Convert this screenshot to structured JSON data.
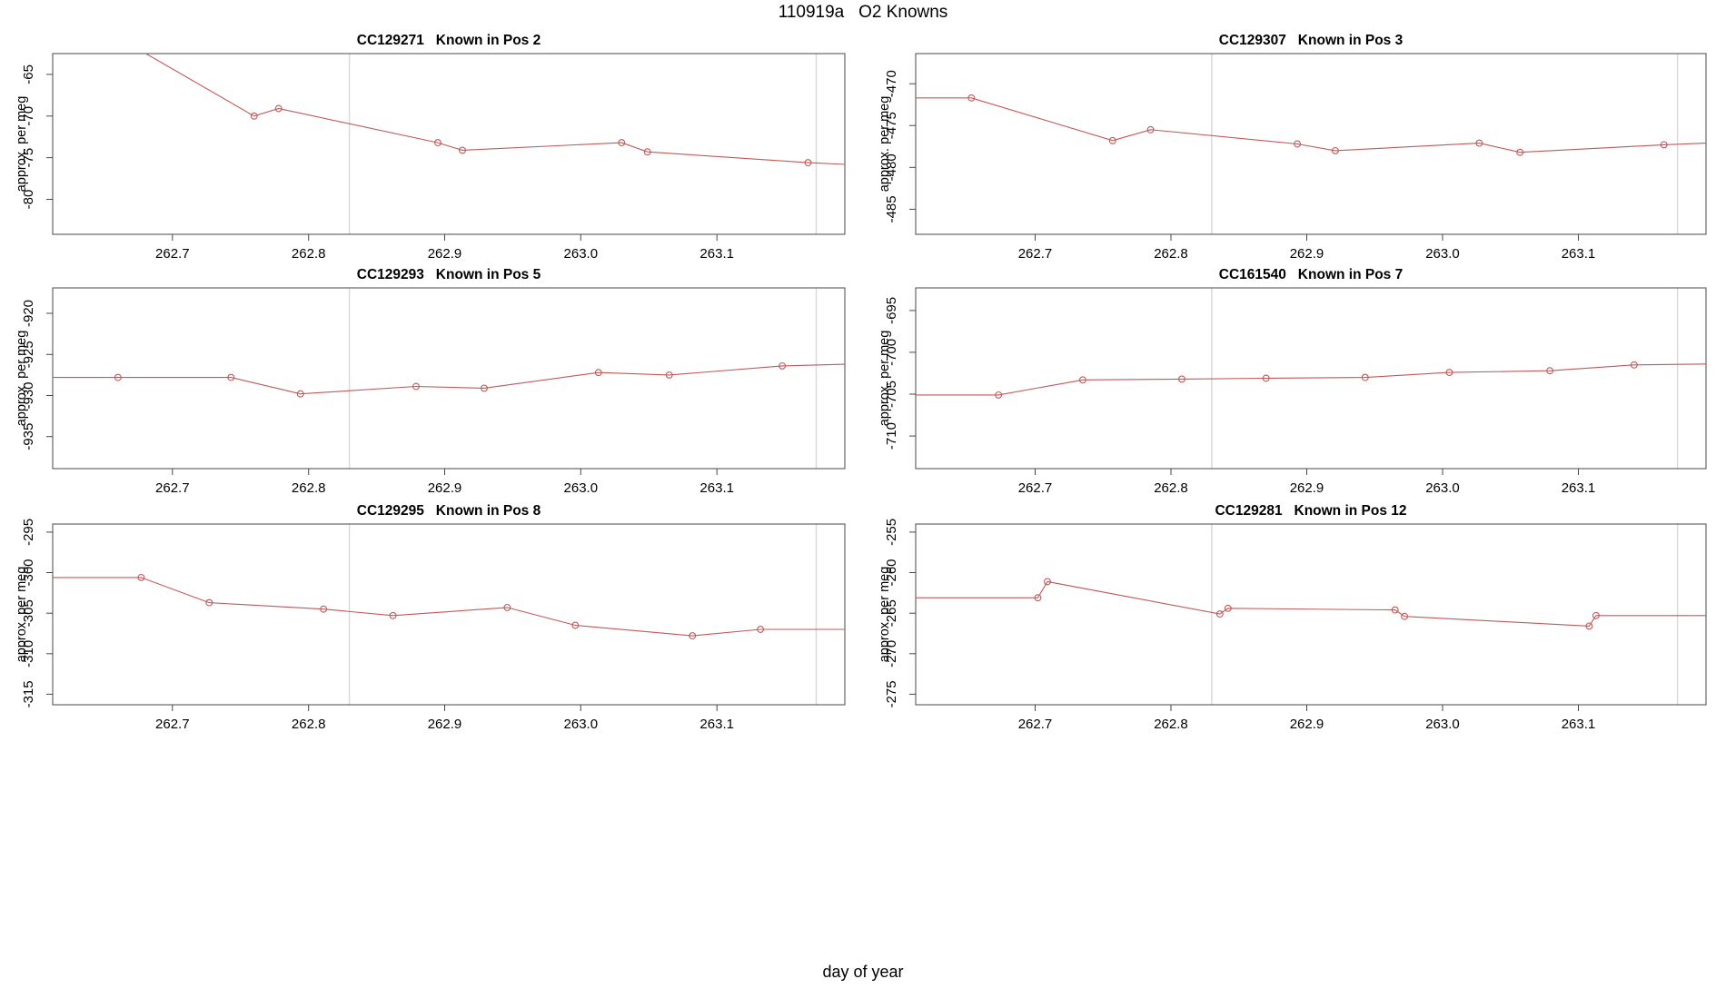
{
  "figure": {
    "title": "110919a   O2 Knowns",
    "xlabel": "day of year",
    "colors": {
      "line": "#c05858",
      "axis": "#474747",
      "grid": "#d9d9d9",
      "text": "#000000",
      "background": "#ffffff"
    }
  },
  "chart_data": [
    {
      "type": "line",
      "station_id": "CC129271",
      "position": "Known in Pos 2",
      "ylabel": "approx. per meg",
      "xlim": [
        262.612,
        263.194
      ],
      "ylim": [
        -84.2,
        -62.5
      ],
      "xtick_values": [
        262.7,
        262.8,
        262.9,
        263.0,
        263.1
      ],
      "xtick_labels": [
        "262.7",
        "262.8",
        "262.9",
        "263.0",
        "263.1"
      ],
      "ytick_values": [
        -65,
        -70,
        -75,
        -80
      ],
      "vlines": [
        262.83,
        263.173
      ],
      "x": [
        262.655,
        262.76,
        262.778,
        262.895,
        262.913,
        263.03,
        263.049,
        263.167,
        263.194
      ],
      "y": [
        -60.1,
        -70.0,
        -69.1,
        -73.2,
        -74.1,
        -73.2,
        -74.3,
        -75.6,
        -75.8
      ],
      "has_marker": [
        0,
        1,
        1,
        1,
        1,
        1,
        1,
        1,
        0
      ]
    },
    {
      "type": "line",
      "station_id": "CC129307",
      "position": "Known in Pos 3",
      "ylabel": "approx. per meg",
      "xlim": [
        262.612,
        263.194
      ],
      "ylim": [
        -488.0,
        -466.4
      ],
      "xtick_values": [
        262.7,
        262.8,
        262.9,
        263.0,
        263.1
      ],
      "xtick_labels": [
        "262.7",
        "262.8",
        "262.9",
        "263.0",
        "263.1"
      ],
      "ytick_values": [
        -470,
        -475,
        -480,
        -485
      ],
      "vlines": [
        262.83,
        263.173
      ],
      "x": [
        262.612,
        262.653,
        262.757,
        262.785,
        262.893,
        262.921,
        263.027,
        263.057,
        263.163,
        263.194
      ],
      "y": [
        -471.7,
        -471.7,
        -476.8,
        -475.5,
        -477.2,
        -478.0,
        -477.1,
        -478.2,
        -477.3,
        -477.1
      ],
      "has_marker": [
        0,
        1,
        1,
        1,
        1,
        1,
        1,
        1,
        1,
        0
      ]
    },
    {
      "type": "line",
      "station_id": "CC129293",
      "position": "Known in Pos 5",
      "ylabel": "approx. per meg",
      "xlim": [
        262.612,
        263.194
      ],
      "ylim": [
        -938.9,
        -916.9
      ],
      "xtick_values": [
        262.7,
        262.8,
        262.9,
        263.0,
        263.1
      ],
      "xtick_labels": [
        "262.7",
        "262.8",
        "262.9",
        "263.0",
        "263.1"
      ],
      "ytick_values": [
        -920,
        -925,
        -930,
        -935
      ],
      "vlines": [
        262.83,
        263.173
      ],
      "x": [
        262.612,
        262.66,
        262.743,
        262.794,
        262.879,
        262.929,
        263.013,
        263.065,
        263.148,
        263.194
      ],
      "y": [
        -927.8,
        -927.8,
        -927.8,
        -929.8,
        -928.9,
        -929.1,
        -927.2,
        -927.5,
        -926.4,
        -926.2
      ],
      "has_marker": [
        0,
        1,
        1,
        1,
        1,
        1,
        1,
        1,
        1,
        0
      ]
    },
    {
      "type": "line",
      "station_id": "CC161540",
      "position": "Known in Pos 7",
      "ylabel": "approx. per meg",
      "xlim": [
        262.612,
        263.194
      ],
      "ylim": [
        -713.9,
        -692.3
      ],
      "xtick_values": [
        262.7,
        262.8,
        262.9,
        263.0,
        263.1
      ],
      "xtick_labels": [
        "262.7",
        "262.8",
        "262.9",
        "263.0",
        "263.1"
      ],
      "ytick_values": [
        -695,
        -700,
        -705,
        -710
      ],
      "vlines": [
        262.83,
        263.173
      ],
      "x": [
        262.612,
        262.673,
        262.735,
        262.808,
        262.87,
        262.943,
        263.005,
        263.079,
        263.141,
        263.194
      ],
      "y": [
        -705.1,
        -705.1,
        -703.3,
        -703.2,
        -703.1,
        -703.0,
        -702.4,
        -702.2,
        -701.5,
        -701.4
      ],
      "has_marker": [
        0,
        1,
        1,
        1,
        1,
        1,
        1,
        1,
        1,
        0
      ]
    },
    {
      "type": "line",
      "station_id": "CC129295",
      "position": "Known in Pos 8",
      "ylabel": "approx. per meg",
      "xlim": [
        262.612,
        263.194
      ],
      "ylim": [
        -316.3,
        -294.0
      ],
      "xtick_values": [
        262.7,
        262.8,
        262.9,
        263.0,
        263.1
      ],
      "xtick_labels": [
        "262.7",
        "262.8",
        "262.9",
        "263.0",
        "263.1"
      ],
      "ytick_values": [
        -295,
        -300,
        -305,
        -310,
        -315
      ],
      "vlines": [
        262.83,
        263.173
      ],
      "x": [
        262.612,
        262.677,
        262.727,
        262.811,
        262.862,
        262.946,
        262.996,
        263.082,
        263.132,
        263.194
      ],
      "y": [
        -300.6,
        -300.6,
        -303.7,
        -304.5,
        -305.3,
        -304.3,
        -306.5,
        -307.8,
        -307.0,
        -307.0
      ],
      "has_marker": [
        0,
        1,
        1,
        1,
        1,
        1,
        1,
        1,
        1,
        0
      ]
    },
    {
      "type": "line",
      "station_id": "CC129281",
      "position": "Known in Pos 12",
      "ylabel": "approx. per meg",
      "xlim": [
        262.612,
        263.194
      ],
      "ylim": [
        -276.3,
        -254.0
      ],
      "xtick_values": [
        262.7,
        262.8,
        262.9,
        263.0,
        263.1
      ],
      "xtick_labels": [
        "262.7",
        "262.8",
        "262.9",
        "263.0",
        "263.1"
      ],
      "ytick_values": [
        -255,
        -260,
        -265,
        -270,
        -275
      ],
      "vlines": [
        262.83,
        263.173
      ],
      "x": [
        262.612,
        262.702,
        262.709,
        262.836,
        262.842,
        262.965,
        262.972,
        263.108,
        263.113,
        263.194
      ],
      "y": [
        -263.1,
        -263.1,
        -261.1,
        -265.1,
        -264.4,
        -264.6,
        -265.4,
        -266.6,
        -265.3,
        -265.3
      ],
      "has_marker": [
        0,
        1,
        1,
        1,
        1,
        1,
        1,
        1,
        1,
        0
      ]
    }
  ]
}
